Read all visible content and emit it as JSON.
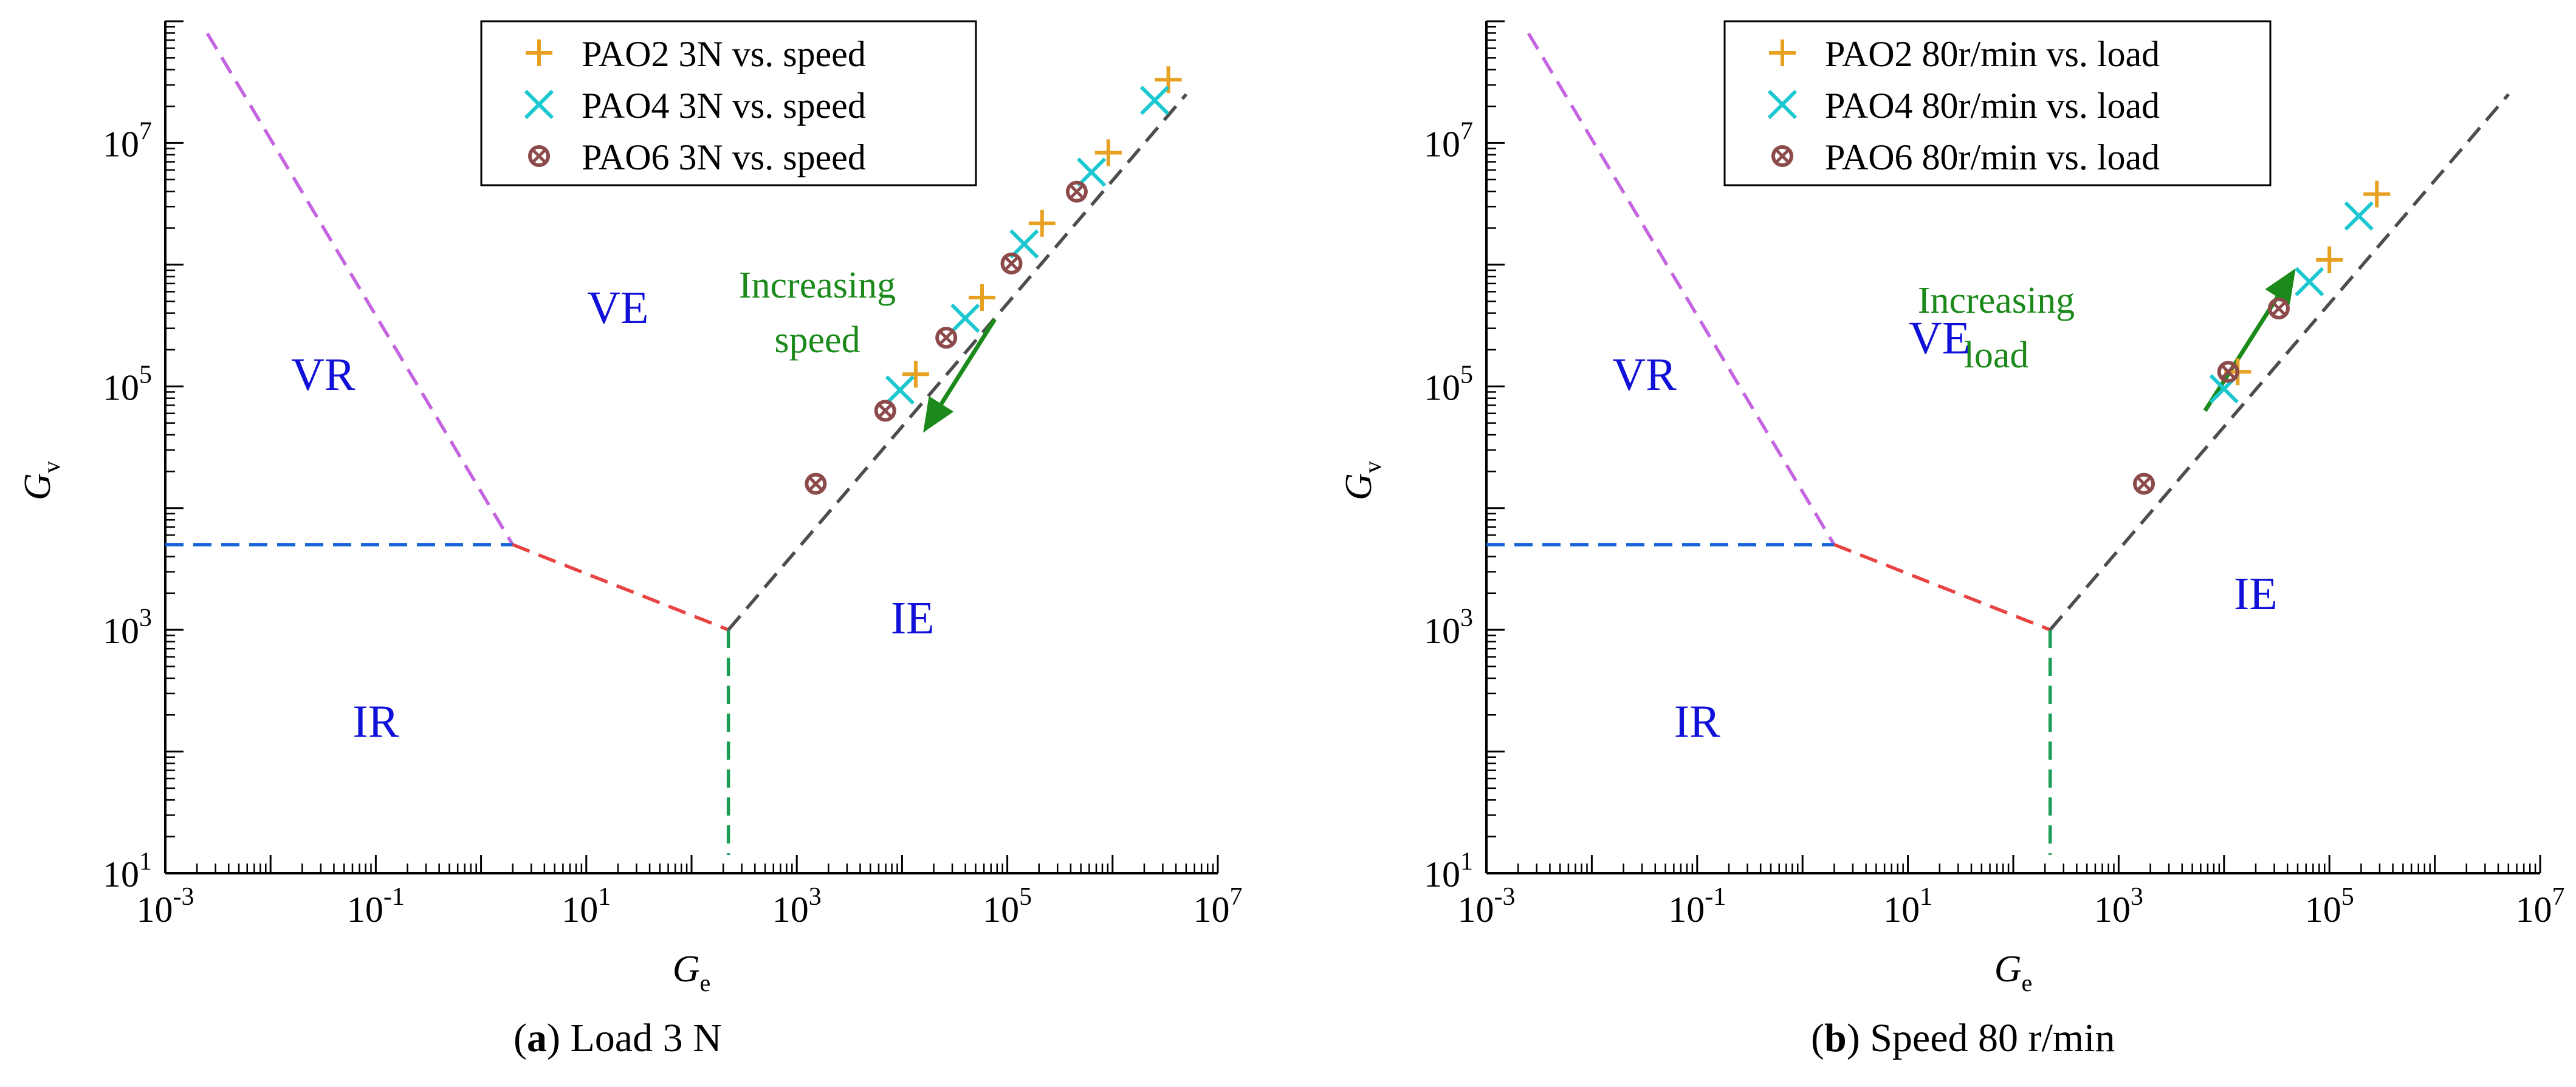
{
  "chart_data": [
    {
      "type": "scatter",
      "axis_scale": "log",
      "xlim_exp": [
        -3,
        7
      ],
      "ylim_exp": [
        1,
        8
      ],
      "x_ticks": [
        -3,
        -1,
        1,
        3,
        5,
        7
      ],
      "y_ticks": [
        1,
        3,
        5,
        7
      ],
      "xlabel": "G",
      "xlabel_sub": "e",
      "ylabel": "G",
      "ylabel_sub": "v",
      "caption_letter": "a",
      "caption_text": "Load 3 N",
      "regime_labels": [
        {
          "text": "VR",
          "x": -1.5,
          "y": 5.1
        },
        {
          "text": "VE",
          "x": 1.3,
          "y": 5.65
        },
        {
          "text": "IE",
          "x": 4.1,
          "y": 3.1
        },
        {
          "text": "IR",
          "x": -1.0,
          "y": 2.25
        }
      ],
      "boundaries": [
        {
          "name": "vr-boundary",
          "color": "#c464e0",
          "points": [
            [
              -2.6,
              7.9
            ],
            [
              0.3,
              3.7
            ]
          ]
        },
        {
          "name": "vr-ir-boundary",
          "color": "#1565d8",
          "points": [
            [
              -3,
              3.7
            ],
            [
              0.3,
              3.7
            ]
          ]
        },
        {
          "name": "ir-boundary",
          "color": "#e84242",
          "points": [
            [
              0.3,
              3.7
            ],
            [
              2.35,
              3.0
            ]
          ]
        },
        {
          "name": "ie-ir-boundary",
          "color": "#1a9e55",
          "points": [
            [
              2.35,
              3.0
            ],
            [
              2.35,
              1.15
            ]
          ]
        },
        {
          "name": "ve-ie-boundary",
          "color": "#4d4d4d",
          "points": [
            [
              2.35,
              3.0
            ],
            [
              6.7,
              7.4
            ]
          ]
        }
      ],
      "series": [
        {
          "name": "PAO2 3N vs. speed",
          "marker": "plus",
          "color": "#e8a020",
          "points": [
            [
              4.13,
              5.1
            ],
            [
              4.76,
              5.73
            ],
            [
              5.33,
              6.34
            ],
            [
              5.96,
              6.92
            ],
            [
              6.53,
              7.52
            ]
          ]
        },
        {
          "name": "PAO4 3N vs. speed",
          "marker": "x",
          "color": "#1cc8cf",
          "points": [
            [
              3.98,
              4.97
            ],
            [
              4.6,
              5.56
            ],
            [
              5.16,
              6.17
            ],
            [
              5.8,
              6.76
            ],
            [
              6.4,
              7.35
            ]
          ]
        },
        {
          "name": "PAO6 3N vs. speed",
          "marker": "circx",
          "color": "#8c4a4a",
          "points": [
            [
              3.18,
              4.2
            ],
            [
              3.84,
              4.8
            ],
            [
              4.42,
              5.4
            ],
            [
              5.04,
              6.01
            ],
            [
              5.66,
              6.6
            ]
          ]
        }
      ],
      "arrow": {
        "label_lines": [
          "Increasing",
          "speed"
        ],
        "color": "#1b8a1b",
        "from": [
          4.88,
          5.55
        ],
        "to": [
          4.2,
          4.62
        ]
      }
    },
    {
      "type": "scatter",
      "axis_scale": "log",
      "xlim_exp": [
        -3,
        7
      ],
      "ylim_exp": [
        1,
        8
      ],
      "x_ticks": [
        -3,
        -1,
        1,
        3,
        5,
        7
      ],
      "y_ticks": [
        1,
        3,
        5,
        7
      ],
      "xlabel": "G",
      "xlabel_sub": "e",
      "ylabel": "G",
      "ylabel_sub": "v",
      "caption_letter": "b",
      "caption_text": "Speed 80 r/min",
      "regime_labels": [
        {
          "text": "VR",
          "x": -1.5,
          "y": 5.1
        },
        {
          "text": "VE",
          "x": 1.3,
          "y": 5.4
        },
        {
          "text": "IE",
          "x": 4.3,
          "y": 3.3
        },
        {
          "text": "IR",
          "x": -1.0,
          "y": 2.25
        }
      ],
      "boundaries": [
        {
          "name": "vr-boundary",
          "color": "#c464e0",
          "points": [
            [
              -2.6,
              7.9
            ],
            [
              0.3,
              3.7
            ]
          ]
        },
        {
          "name": "vr-ir-boundary",
          "color": "#1565d8",
          "points": [
            [
              -3,
              3.7
            ],
            [
              0.3,
              3.7
            ]
          ]
        },
        {
          "name": "ir-boundary",
          "color": "#e84242",
          "points": [
            [
              0.3,
              3.7
            ],
            [
              2.35,
              3.0
            ]
          ]
        },
        {
          "name": "ie-ir-boundary",
          "color": "#1a9e55",
          "points": [
            [
              2.35,
              3.0
            ],
            [
              2.35,
              1.15
            ]
          ]
        },
        {
          "name": "ve-ie-boundary",
          "color": "#4d4d4d",
          "points": [
            [
              2.35,
              3.0
            ],
            [
              6.7,
              7.4
            ]
          ]
        }
      ],
      "series": [
        {
          "name": "PAO2 80r/min vs. load",
          "marker": "plus",
          "color": "#e8a020",
          "points": [
            [
              4.13,
              5.12
            ],
            [
              5.0,
              6.04
            ],
            [
              5.45,
              6.58
            ]
          ]
        },
        {
          "name": "PAO4 80r/min vs. load",
          "marker": "x",
          "color": "#1cc8cf",
          "points": [
            [
              4.0,
              4.98
            ],
            [
              4.81,
              5.86
            ],
            [
              5.28,
              6.4
            ]
          ]
        },
        {
          "name": "PAO6 80r/min vs. load",
          "marker": "circx",
          "color": "#8c4a4a",
          "points": [
            [
              3.24,
              4.2
            ],
            [
              4.04,
              5.12
            ],
            [
              4.52,
              5.64
            ]
          ]
        }
      ],
      "arrow": {
        "label_lines": [
          "Increasing",
          "load"
        ],
        "color": "#1b8a1b",
        "from": [
          3.82,
          4.8
        ],
        "to": [
          4.68,
          5.97
        ]
      }
    }
  ]
}
